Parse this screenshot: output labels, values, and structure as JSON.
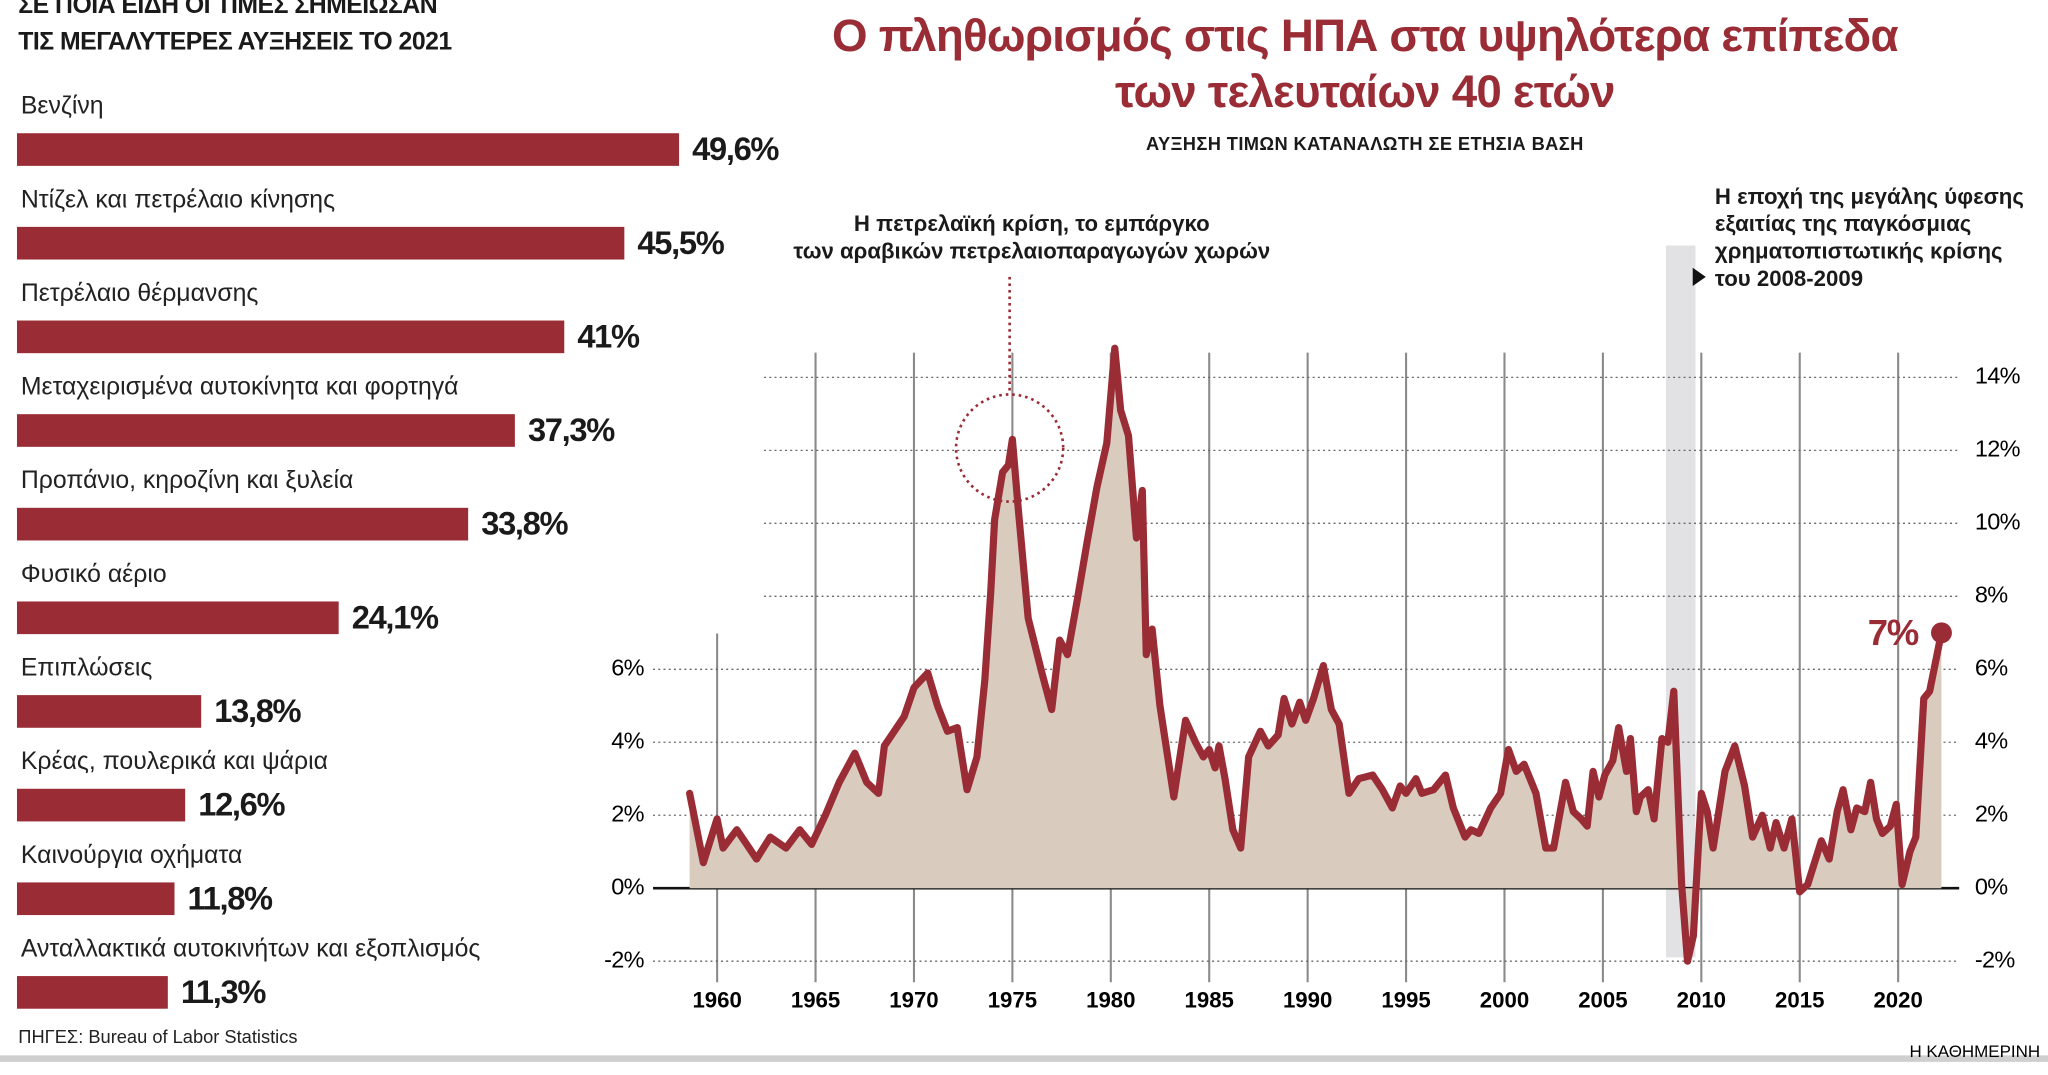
{
  "chart_data": [
    {
      "type": "hbar",
      "title": [
        "ΣΕ ΠΟΙΑ ΕΙΔΗ ΟΙ ΤΙΜΕΣ ΣΗΜΕΙΩΣΑΝ",
        "ΤΙΣ ΜΕΓΑΛΥΤΕΡΕΣ ΑΥΞΗΣΕΙΣ ΤΟ 2021"
      ],
      "categories": [
        "Βενζίνη",
        "Ντίζελ και πετρέλαιο κίνησης",
        "Πετρέλαιο θέρμανσης",
        "Μεταχειρισμένα αυτοκίνητα και φορτηγά",
        "Προπάνιο, κηροζίνη και ξυλεία",
        "Φυσικό αέριο",
        "Επιπλώσεις",
        "Κρέας, πουλερικά και ψάρια",
        "Καινούργια οχήματα",
        "Ανταλλακτικά αυτοκινήτων και εξοπλισμός"
      ],
      "values": [
        49.6,
        45.5,
        41,
        37.3,
        33.8,
        24.1,
        13.8,
        12.6,
        11.8,
        11.3
      ],
      "value_labels": [
        "49,6%",
        "45,5%",
        "41%",
        "37,3%",
        "33,8%",
        "24,1%",
        "13,8%",
        "12,6%",
        "11,8%",
        "11,3%"
      ],
      "color": "#9a2c35",
      "xlim": [
        0,
        50
      ],
      "source": "ΠΗΓΕΣ: Bureau of Labor Statistics"
    },
    {
      "type": "area-line",
      "title": [
        "Ο πληθωρισμός στις ΗΠΑ στα υψηλότερα επίπεδα",
        "των τελευταίων 40 ετών"
      ],
      "subtitle": "ΑΥΞΗΣΗ ΤΙΜΩΝ ΚΑΤΑΝΑΛΩΤΗ ΣΕ ΕΤΗΣΙΑ ΒΑΣΗ",
      "annotations": [
        [
          "Η πετρελαϊκή κρίση, το εμπάργκο",
          "των αραβικών πετρελαιοπαραγωγών χωρών"
        ],
        [
          "Η εποχή της μεγάλης ύφεσης",
          "εξαιτίας της παγκόσμιας",
          "χρηματοπιστωτικής κρίσης",
          "του 2008-2009"
        ],
        "7%"
      ],
      "shaded_period": [
        2008.2,
        2009.7
      ],
      "x": [
        1958.6,
        1959.3,
        1960.0,
        1960.3,
        1961.0,
        1961.5,
        1962.0,
        1962.7,
        1963.5,
        1964.2,
        1964.8,
        1965.5,
        1966.2,
        1967.0,
        1967.6,
        1968.2,
        1968.5,
        1969.5,
        1970.0,
        1970.7,
        1971.2,
        1971.7,
        1972.2,
        1972.7,
        1973.2,
        1973.6,
        1973.9,
        1974.1,
        1974.5,
        1974.8,
        1975.0,
        1975.3,
        1975.8,
        1976.5,
        1977.0,
        1977.4,
        1977.8,
        1978.3,
        1978.8,
        1979.3,
        1979.8,
        1980.2,
        1980.5,
        1980.9,
        1981.3,
        1981.6,
        1981.8,
        1982.1,
        1982.5,
        1983.2,
        1983.8,
        1984.3,
        1984.7,
        1985.0,
        1985.3,
        1985.5,
        1985.8,
        1986.2,
        1986.6,
        1987.0,
        1987.6,
        1988.0,
        1988.5,
        1988.8,
        1989.2,
        1989.6,
        1989.9,
        1990.3,
        1990.8,
        1991.2,
        1991.6,
        1992.1,
        1992.6,
        1993.3,
        1993.8,
        1994.3,
        1994.7,
        1995.0,
        1995.5,
        1995.8,
        1996.4,
        1997.0,
        1997.4,
        1998.0,
        1998.3,
        1998.7,
        1999.3,
        1999.8,
        2000.2,
        2000.6,
        2001.0,
        2001.6,
        2002.1,
        2002.5,
        2003.1,
        2003.5,
        2003.9,
        2004.2,
        2004.5,
        2004.8,
        2005.1,
        2005.5,
        2005.8,
        2006.2,
        2006.4,
        2006.7,
        2006.9,
        2007.3,
        2007.6,
        2008.0,
        2008.3,
        2008.6,
        2009.0,
        2009.3,
        2009.6,
        2010.0,
        2010.3,
        2010.6,
        2011.2,
        2011.7,
        2012.2,
        2012.6,
        2013.1,
        2013.5,
        2013.8,
        2014.2,
        2014.6,
        2015.0,
        2015.4,
        2016.1,
        2016.5,
        2016.9,
        2017.2,
        2017.6,
        2017.9,
        2018.3,
        2018.6,
        2018.9,
        2019.2,
        2019.6,
        2019.9,
        2020.2,
        2020.6,
        2020.9,
        2021.3,
        2021.6,
        2022.2
      ],
      "series": [
        {
          "color": "#9a2c35",
          "fill": "#d9ccbf",
          "values": [
            2.6,
            0.7,
            1.9,
            1.1,
            1.6,
            1.2,
            0.8,
            1.4,
            1.1,
            1.6,
            1.2,
            2.0,
            2.9,
            3.7,
            2.9,
            2.6,
            3.9,
            4.7,
            5.5,
            5.9,
            5.0,
            4.3,
            4.4,
            2.7,
            3.6,
            5.7,
            8.1,
            10.1,
            11.4,
            11.6,
            12.3,
            10.4,
            7.4,
            5.9,
            4.9,
            6.8,
            6.4,
            7.9,
            9.5,
            11.0,
            12.2,
            14.8,
            13.1,
            12.4,
            9.6,
            10.9,
            6.4,
            7.1,
            5.0,
            2.5,
            4.6,
            4.0,
            3.6,
            3.8,
            3.3,
            3.9,
            3.0,
            1.6,
            1.1,
            3.6,
            4.3,
            3.9,
            4.2,
            5.2,
            4.5,
            5.1,
            4.6,
            5.2,
            6.1,
            4.9,
            4.5,
            2.6,
            3.0,
            3.1,
            2.7,
            2.2,
            2.8,
            2.6,
            3.0,
            2.6,
            2.7,
            3.1,
            2.2,
            1.4,
            1.6,
            1.5,
            2.2,
            2.6,
            3.8,
            3.2,
            3.4,
            2.6,
            1.1,
            1.1,
            2.9,
            2.1,
            1.9,
            1.7,
            3.2,
            2.5,
            3.1,
            3.5,
            4.4,
            3.2,
            4.1,
            2.1,
            2.5,
            2.7,
            1.9,
            4.1,
            4.0,
            5.4,
            0.1,
            -2.0,
            -1.3,
            2.6,
            2.1,
            1.1,
            3.2,
            3.9,
            2.8,
            1.4,
            2.0,
            1.1,
            1.8,
            1.1,
            1.9,
            -0.1,
            0.1,
            1.3,
            0.8,
            2.1,
            2.7,
            1.6,
            2.2,
            2.1,
            2.9,
            1.9,
            1.5,
            1.7,
            2.3,
            0.1,
            1.0,
            1.4,
            5.2,
            5.4,
            7.0
          ]
        }
      ],
      "xlim": [
        1955.75,
        2023.1
      ],
      "xticks": [
        1960,
        1965,
        1970,
        1975,
        1980,
        1985,
        1990,
        1995,
        2000,
        2005,
        2010,
        2015,
        2020
      ],
      "ylim": [
        -2.2,
        15
      ],
      "yticks": [
        {
          "value": -2,
          "label": "-2%"
        },
        {
          "value": 0,
          "label": "0%"
        },
        {
          "value": 2,
          "label": "2%"
        },
        {
          "value": 4,
          "label": "4%"
        },
        {
          "value": 6,
          "label": "6%"
        }
      ],
      "y2lim": [
        -2.2,
        15
      ],
      "y2ticks": [
        {
          "value": -2,
          "label": "-2%"
        },
        {
          "value": 0,
          "label": "0%"
        },
        {
          "value": 2,
          "label": "2%"
        },
        {
          "value": 4,
          "label": "4%"
        },
        {
          "value": 6,
          "label": "6%"
        },
        {
          "value": 8,
          "label": "8%"
        },
        {
          "value": 10,
          "label": "10%"
        },
        {
          "value": 12,
          "label": "12%"
        },
        {
          "value": 14,
          "label": "14%"
        }
      ],
      "grid": true,
      "credit": "Η ΚΑΘΗΜΕΡΙΝΗ"
    }
  ]
}
